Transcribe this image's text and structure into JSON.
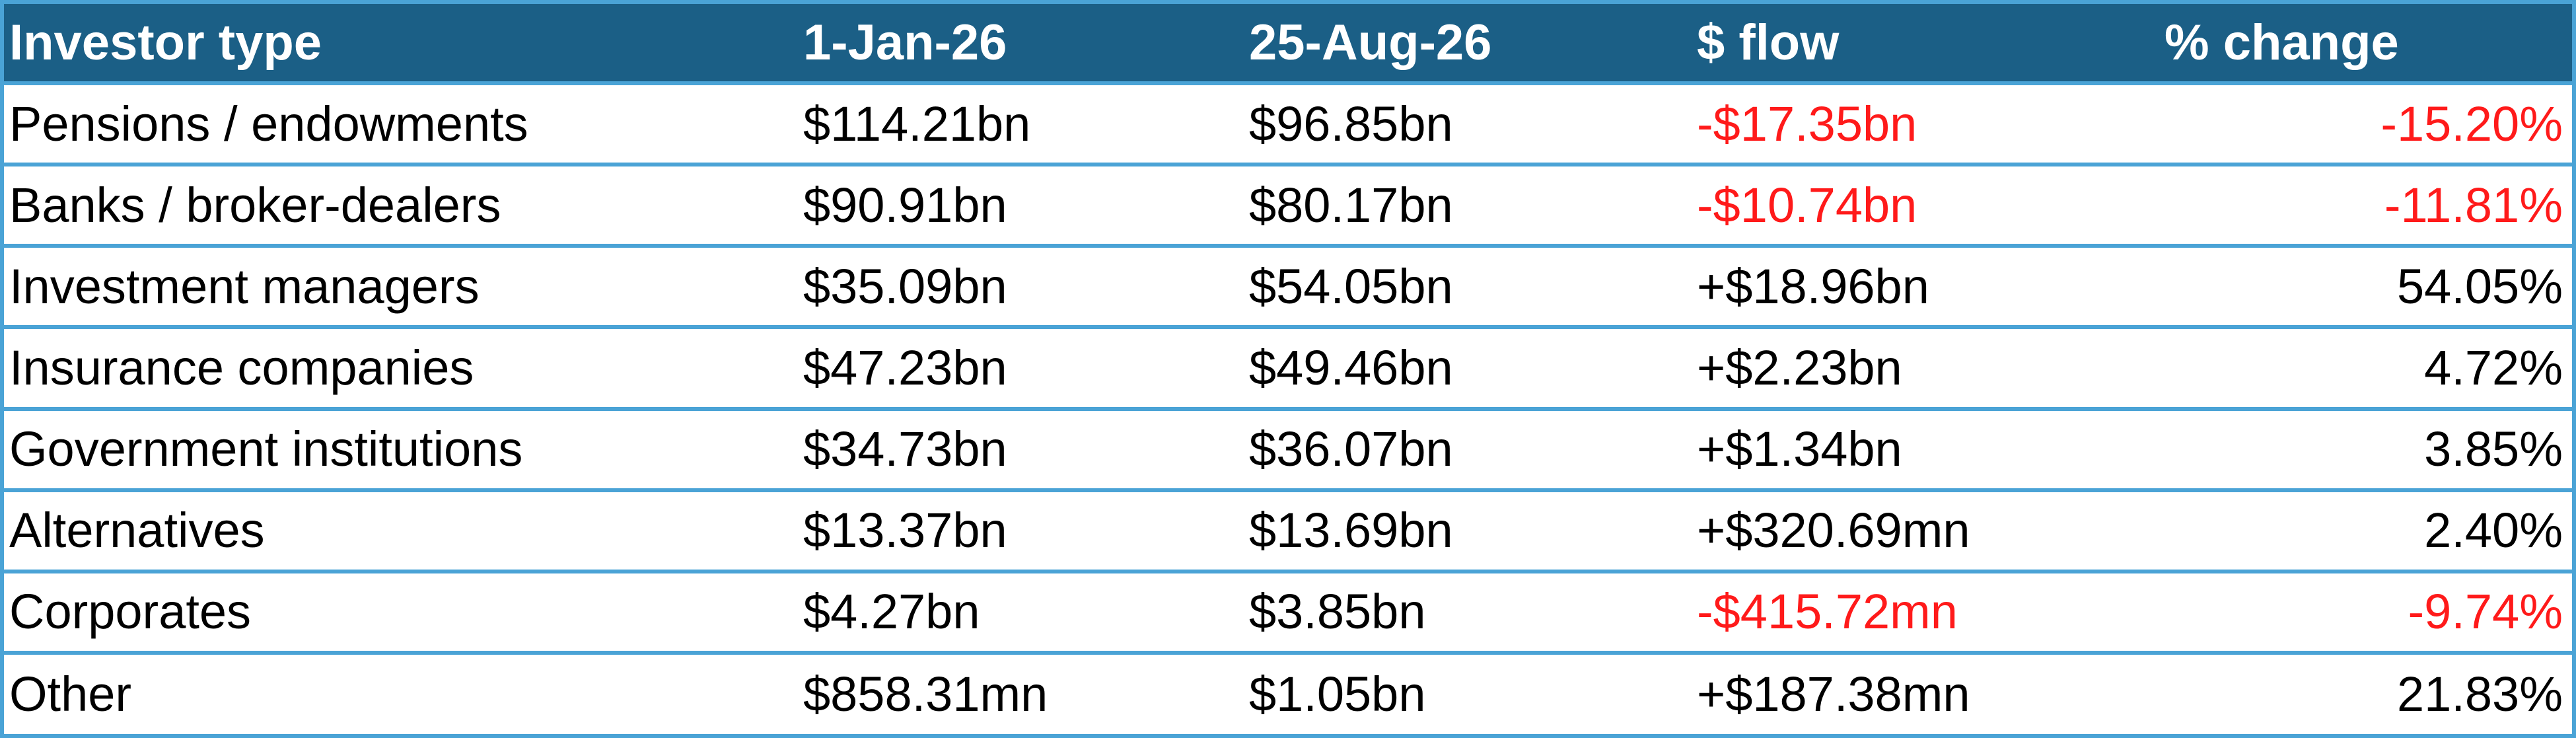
{
  "table": {
    "headers": [
      "Investor type",
      "1-Jan-26",
      "25-Aug-26",
      "$ flow",
      "% change"
    ],
    "rows": [
      {
        "type": "Pensions / endowments",
        "jan": "$114.21bn",
        "aug": "$96.85bn",
        "flow": "-$17.35bn",
        "pct": "-15.20%",
        "negative": true
      },
      {
        "type": "Banks / broker-dealers",
        "jan": "$90.91bn",
        "aug": "$80.17bn",
        "flow": "-$10.74bn",
        "pct": "-11.81%",
        "negative": true
      },
      {
        "type": "Investment managers",
        "jan": "$35.09bn",
        "aug": "$54.05bn",
        "flow": "+$18.96bn",
        "pct": "54.05%",
        "negative": false
      },
      {
        "type": "Insurance companies",
        "jan": "$47.23bn",
        "aug": "$49.46bn",
        "flow": "+$2.23bn",
        "pct": "4.72%",
        "negative": false
      },
      {
        "type": "Government institutions",
        "jan": "$34.73bn",
        "aug": "$36.07bn",
        "flow": "+$1.34bn",
        "pct": "3.85%",
        "negative": false
      },
      {
        "type": "Alternatives",
        "jan": "$13.37bn",
        "aug": "$13.69bn",
        "flow": "+$320.69mn",
        "pct": "2.40%",
        "negative": false
      },
      {
        "type": "Corporates",
        "jan": "$4.27bn",
        "aug": "$3.85bn",
        "flow": "-$415.72mn",
        "pct": "-9.74%",
        "negative": true
      },
      {
        "type": "Other",
        "jan": "$858.31mn",
        "aug": "$1.05bn",
        "flow": "+$187.38mn",
        "pct": "21.83%",
        "negative": false
      }
    ]
  },
  "colors": {
    "header_bg": "#1b5f86",
    "border": "#4aa3d6",
    "negative": "#ff1a1a",
    "text": "#000000"
  }
}
